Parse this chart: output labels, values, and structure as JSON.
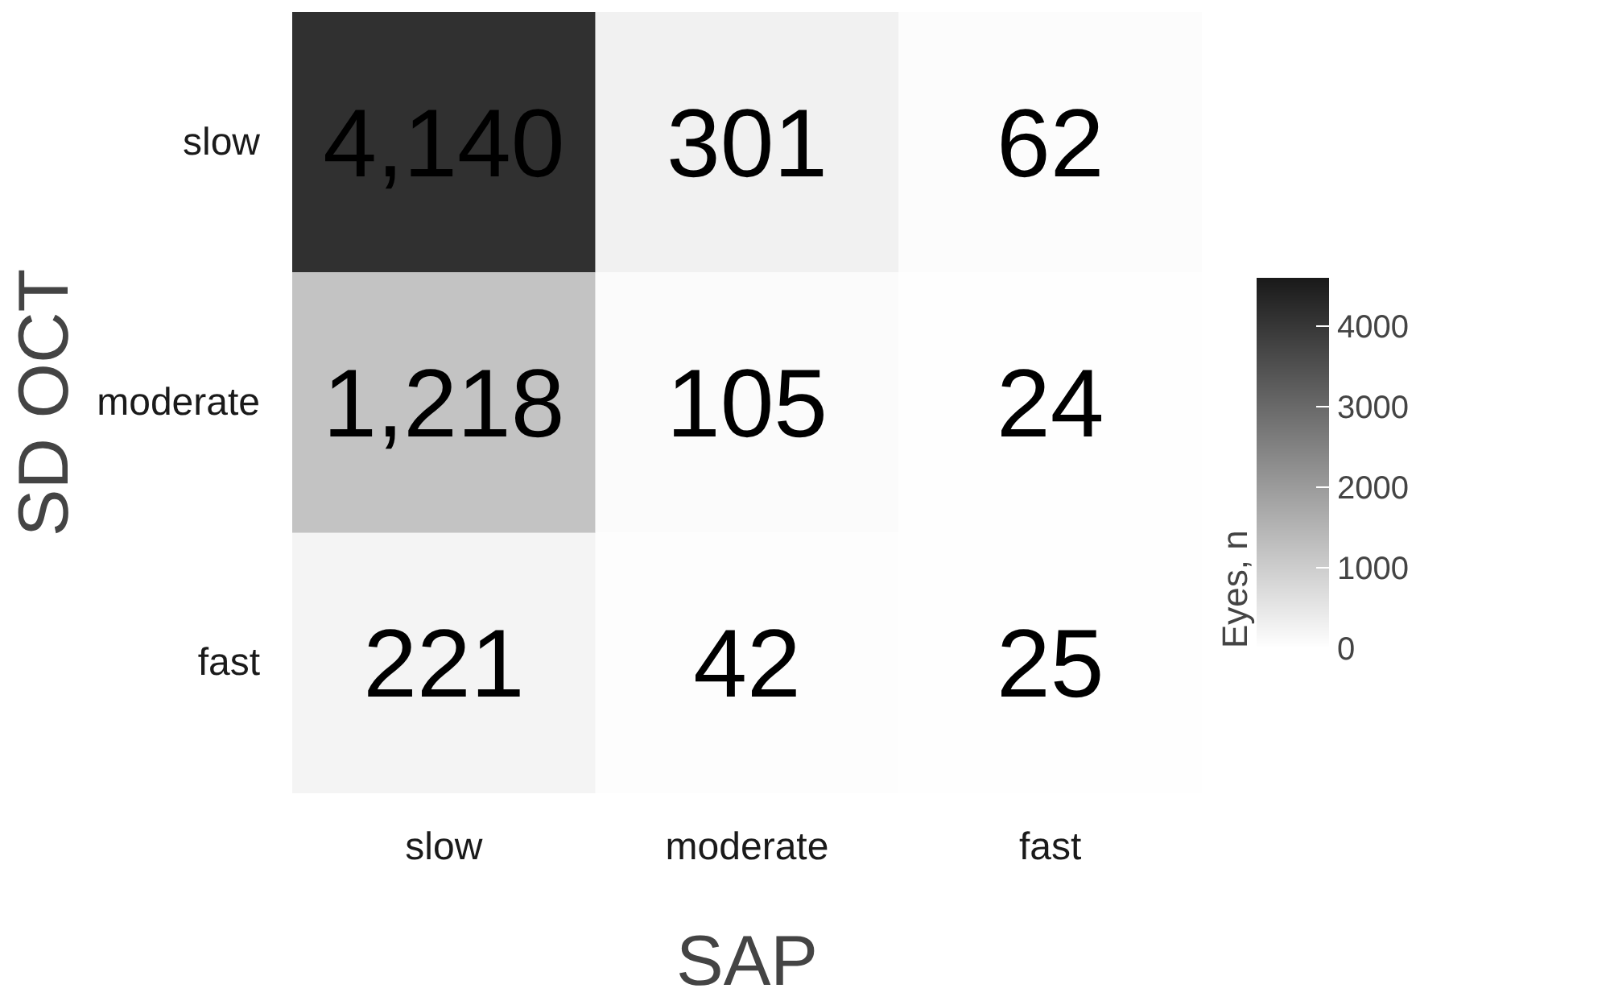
{
  "chart_data": {
    "type": "heatmap",
    "xlabel": "SAP",
    "ylabel": "SD OCT",
    "clabel": "Eyes, n",
    "categories": [
      "slow",
      "moderate",
      "fast"
    ],
    "y_categories": [
      "slow",
      "moderate",
      "fast"
    ],
    "cells": [
      [
        4140,
        301,
        62
      ],
      [
        1218,
        105,
        24
      ],
      [
        221,
        42,
        25
      ]
    ],
    "cell_labels": [
      [
        "4,140",
        "301",
        "62"
      ],
      [
        "1,218",
        "105",
        "24"
      ],
      [
        "221",
        "42",
        "25"
      ]
    ],
    "clim": [
      0,
      4600
    ],
    "cticks": [
      0,
      1000,
      2000,
      3000,
      4000
    ],
    "grid": false
  }
}
